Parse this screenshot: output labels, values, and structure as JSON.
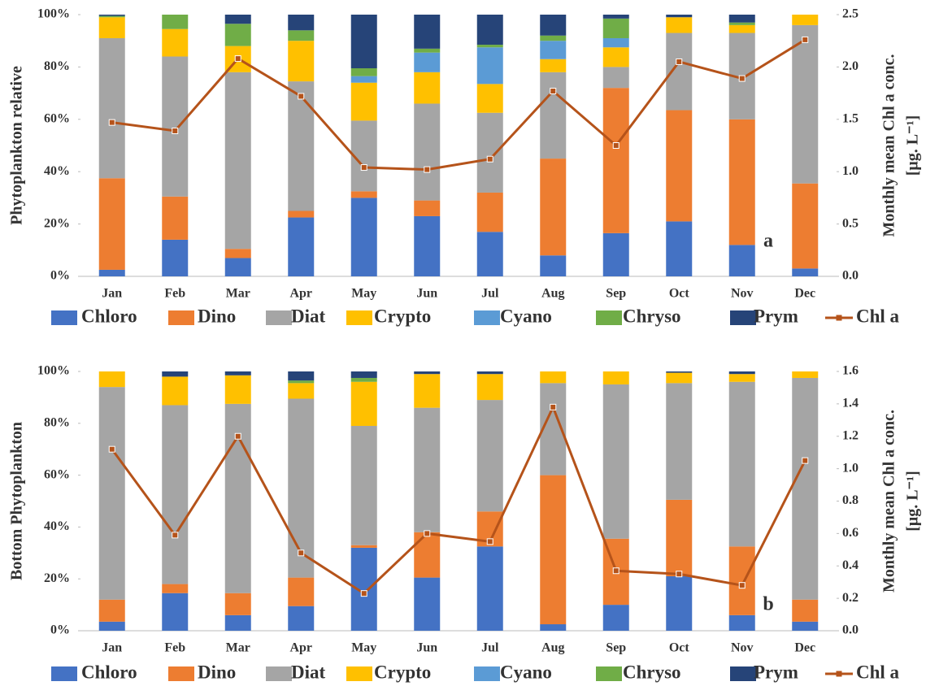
{
  "chart_data": [
    {
      "type": "bar",
      "stacked": true,
      "y_label": "Phytoplankton  relative",
      "y2_label": [
        "Monthly  mean Chl a conc.",
        "[μg. L⁻¹]"
      ],
      "annotation": "a",
      "categories": [
        "Jan",
        "Feb",
        "Mar",
        "Apr",
        "May",
        "Jun",
        "Jul",
        "Aug",
        "Sep",
        "Oct",
        "Nov",
        "Dec"
      ],
      "ylim": [
        0,
        100
      ],
      "yticks": [
        {
          "value": 0,
          "label": "0%"
        },
        {
          "value": 20,
          "label": "20%"
        },
        {
          "value": 40,
          "label": "40%"
        },
        {
          "value": 60,
          "label": "60%"
        },
        {
          "value": 80,
          "label": "80%"
        },
        {
          "value": 100,
          "label": "100%"
        }
      ],
      "y2lim": [
        0,
        2.5
      ],
      "y2ticks": [
        {
          "value": 0,
          "label": "0.0"
        },
        {
          "value": 0.5,
          "label": "0.5"
        },
        {
          "value": 1,
          "label": "1.0"
        },
        {
          "value": 1.5,
          "label": "1.5"
        },
        {
          "value": 2,
          "label": "2.0"
        },
        {
          "value": 2.5,
          "label": "2.5"
        }
      ],
      "series": [
        {
          "name": "Chloro",
          "color": "#4472c4",
          "values": [
            2.5,
            14,
            7,
            22.5,
            30,
            23,
            17,
            8,
            16.5,
            21,
            12,
            3
          ]
        },
        {
          "name": "Dino",
          "color": "#ed7d31",
          "values": [
            35,
            16.5,
            3.5,
            2.5,
            2.5,
            6,
            15,
            37,
            55.5,
            42.5,
            48,
            32.5
          ]
        },
        {
          "name": "Diat",
          "color": "#a5a5a5",
          "values": [
            53.5,
            53.5,
            67.5,
            49.5,
            27,
            37,
            30.5,
            33,
            8,
            29.5,
            33,
            60.5
          ]
        },
        {
          "name": "Crypto",
          "color": "#ffc000",
          "values": [
            8,
            10.5,
            10,
            15.5,
            14.5,
            12,
            11,
            5,
            7.5,
            6,
            3,
            4
          ]
        },
        {
          "name": "Cyano",
          "color": "#5b9bd5",
          "values": [
            0,
            0,
            0,
            0,
            2.5,
            7.5,
            14,
            7,
            3.5,
            0,
            0,
            0
          ]
        },
        {
          "name": "Chryso",
          "color": "#70ad47",
          "values": [
            0.5,
            5.5,
            8.5,
            4,
            3,
            1.5,
            1,
            2,
            7.5,
            0,
            1,
            0
          ]
        },
        {
          "name": "Prym",
          "color": "#264478",
          "values": [
            0.5,
            0,
            3.5,
            6,
            20.5,
            13,
            11.5,
            8,
            1.5,
            1,
            3,
            0
          ]
        },
        {
          "name": "Chl a",
          "color": "#b5531a",
          "type": "line",
          "axis": "y2",
          "values": [
            1.47,
            1.39,
            2.08,
            1.72,
            1.04,
            1.02,
            1.12,
            1.77,
            1.25,
            2.05,
            1.89,
            2.26
          ]
        }
      ]
    },
    {
      "type": "bar",
      "stacked": true,
      "y_label": "Bottom Phytoplankton",
      "y2_label": [
        "Monthly  mean Chl a conc.",
        "[μg. L⁻¹]"
      ],
      "annotation": "b",
      "categories": [
        "Jan",
        "Feb",
        "Mar",
        "Apr",
        "May",
        "Jun",
        "Jul",
        "Aug",
        "Sep",
        "Oct",
        "Nov",
        "Dec"
      ],
      "ylim": [
        0,
        100
      ],
      "yticks": [
        {
          "value": 0,
          "label": "0%"
        },
        {
          "value": 20,
          "label": "20%"
        },
        {
          "value": 40,
          "label": "40%"
        },
        {
          "value": 60,
          "label": "60%"
        },
        {
          "value": 80,
          "label": "80%"
        },
        {
          "value": 100,
          "label": "100%"
        }
      ],
      "y2lim": [
        0,
        1.6
      ],
      "y2ticks": [
        {
          "value": 0,
          "label": "0.0"
        },
        {
          "value": 0.2,
          "label": "0.2"
        },
        {
          "value": 0.4,
          "label": "0.4"
        },
        {
          "value": 0.6,
          "label": "0.6"
        },
        {
          "value": 0.8,
          "label": "0.8"
        },
        {
          "value": 1,
          "label": "1.0"
        },
        {
          "value": 1.2,
          "label": "1.2"
        },
        {
          "value": 1.4,
          "label": "1.4"
        },
        {
          "value": 1.6,
          "label": "1.6"
        }
      ],
      "series": [
        {
          "name": "Chloro",
          "color": "#4472c4",
          "values": [
            3.5,
            14.5,
            6,
            9.5,
            32,
            20.5,
            32.5,
            2.5,
            10,
            21,
            6,
            3.5
          ]
        },
        {
          "name": "Dino",
          "color": "#ed7d31",
          "values": [
            8.5,
            3.5,
            8.5,
            11,
            1,
            17.5,
            13.5,
            57.5,
            25.5,
            29.5,
            26.5,
            8.5
          ]
        },
        {
          "name": "Diat",
          "color": "#a5a5a5",
          "values": [
            82,
            69,
            73,
            69,
            46,
            48,
            43,
            35.5,
            59.5,
            45,
            63.5,
            85.5
          ]
        },
        {
          "name": "Crypto",
          "color": "#ffc000",
          "values": [
            6,
            11,
            11,
            6,
            17,
            13,
            10,
            4.5,
            5,
            4,
            3,
            2.5
          ]
        },
        {
          "name": "Cyano",
          "color": "#5b9bd5",
          "values": [
            0,
            0,
            0,
            0,
            0,
            0,
            0,
            0,
            0,
            0,
            0,
            0
          ]
        },
        {
          "name": "Chryso",
          "color": "#70ad47",
          "values": [
            0,
            0,
            0,
            1,
            1.5,
            0,
            0,
            0,
            0,
            0,
            0,
            0
          ]
        },
        {
          "name": "Prym",
          "color": "#264478",
          "values": [
            0,
            2,
            1.5,
            3.5,
            2.5,
            1,
            1,
            0,
            0,
            0.5,
            1,
            0
          ]
        },
        {
          "name": "Chl a",
          "color": "#b5531a",
          "type": "line",
          "axis": "y2",
          "values": [
            1.12,
            0.59,
            1.2,
            0.48,
            0.23,
            0.6,
            0.55,
            1.38,
            0.37,
            0.35,
            0.28,
            1.05
          ]
        }
      ]
    }
  ]
}
